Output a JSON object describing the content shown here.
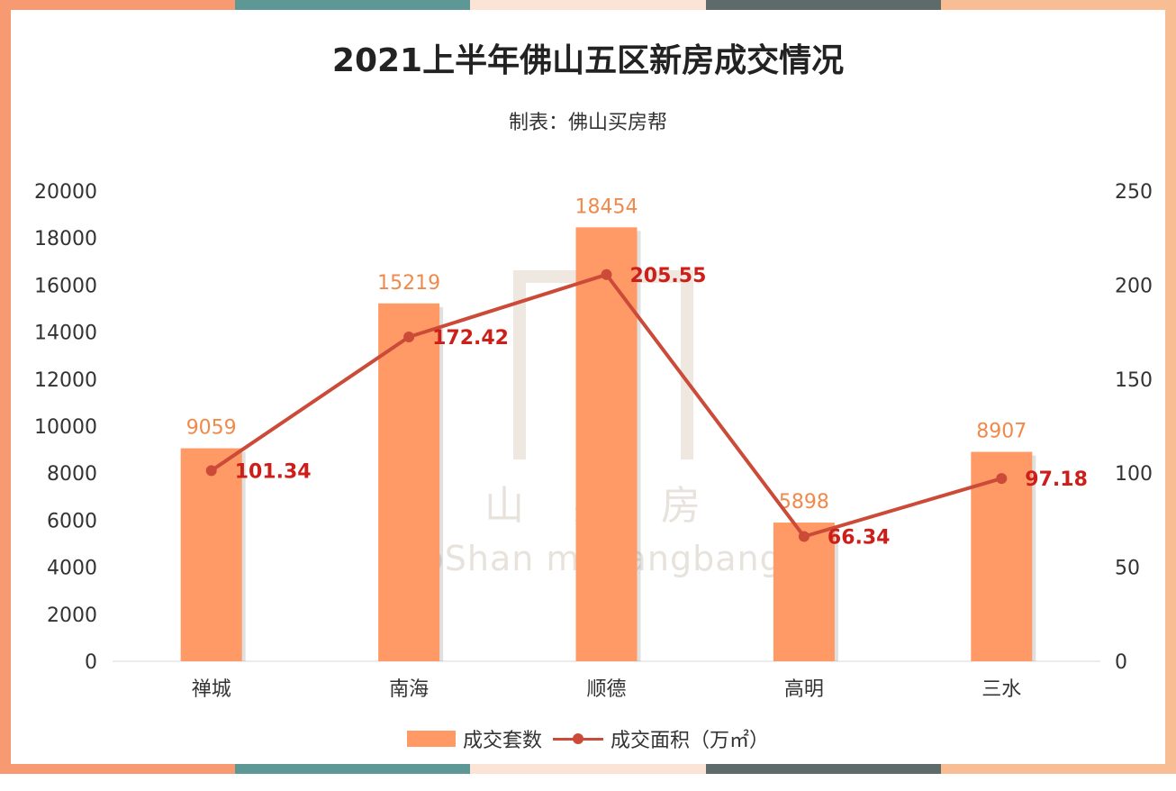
{
  "title": "2021上半年佛山五区新房成交情况",
  "subtitle": "制表：佛山买房帮",
  "watermark": {
    "cn": "佛山买房帮",
    "en": "FoShan maifangbang"
  },
  "colors": {
    "bar": "#ff9a66",
    "line": "#cc4a38",
    "bar_label": "#f08a4b",
    "line_label": "#cc1f1a",
    "frame": [
      "#f79a72",
      "#5e9896",
      "#fbe3d6",
      "#5e6b6b",
      "#f9bd93"
    ]
  },
  "chart_data": {
    "type": "bar",
    "categories": [
      "禅城",
      "南海",
      "顺德",
      "高明",
      "三水"
    ],
    "y_left_ticks": [
      "0",
      "2000",
      "4000",
      "6000",
      "8000",
      "10000",
      "12000",
      "14000",
      "16000",
      "18000",
      "20000"
    ],
    "y_right_ticks": [
      "0",
      "50",
      "100",
      "150",
      "200",
      "250"
    ],
    "ylim_left": [
      0,
      20000
    ],
    "ylim_right": [
      0,
      250
    ],
    "series": [
      {
        "name": "成交套数",
        "type": "bar",
        "axis": "left",
        "values": [
          9059,
          15219,
          18454,
          5898,
          8907
        ],
        "labels": [
          "9059",
          "15219",
          "18454",
          "5898",
          "8907"
        ]
      },
      {
        "name": "成交面积（万㎡）",
        "type": "line",
        "axis": "right",
        "values": [
          101.34,
          172.42,
          205.55,
          66.34,
          97.18
        ],
        "labels": [
          "101.34",
          "172.42",
          "205.55",
          "66.34",
          "97.18"
        ]
      }
    ],
    "legend_position": "bottom",
    "grid": false
  }
}
